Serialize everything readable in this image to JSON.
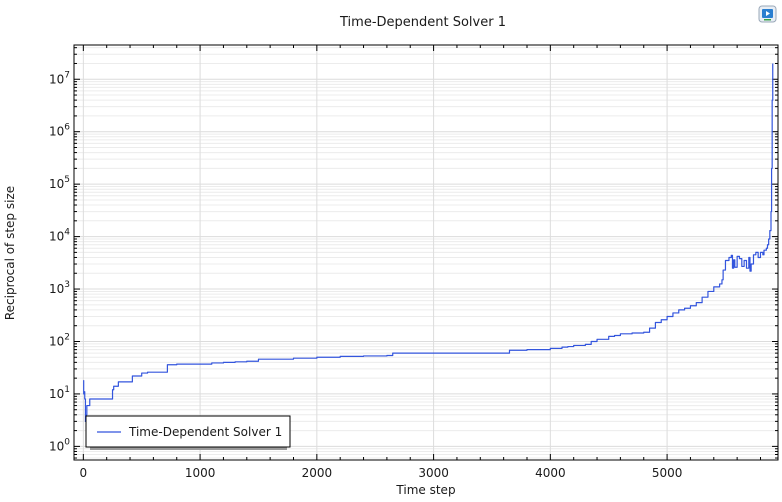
{
  "chart_data": {
    "type": "line",
    "title": "Time-Dependent Solver 1",
    "xlabel": "Time step",
    "ylabel": "Reciprocal of step size",
    "xlim": [
      -80,
      5950
    ],
    "ylim": [
      0.55,
      45000000
    ],
    "yscale": "log",
    "x_ticks": [
      0,
      1000,
      2000,
      3000,
      4000,
      5000
    ],
    "x_tick_labels": [
      "0",
      "1000",
      "2000",
      "3000",
      "4000",
      "5000"
    ],
    "y_ticks": [
      1,
      10,
      100,
      1000,
      10000,
      100000,
      1000000,
      10000000
    ],
    "y_tick_labels": [
      {
        "base": "10",
        "exp": "0"
      },
      {
        "base": "10",
        "exp": "1"
      },
      {
        "base": "10",
        "exp": "2"
      },
      {
        "base": "10",
        "exp": "3"
      },
      {
        "base": "10",
        "exp": "4"
      },
      {
        "base": "10",
        "exp": "5"
      },
      {
        "base": "10",
        "exp": "6"
      },
      {
        "base": "10",
        "exp": "7"
      }
    ],
    "grid": true,
    "legend_position": "bottom-left",
    "series_color": "#3355dd",
    "series": [
      {
        "name": "Time-Dependent Solver 1",
        "x": [
          0,
          3,
          8,
          12,
          18,
          25,
          30,
          40,
          55,
          70,
          90,
          150,
          200,
          250,
          260,
          300,
          350,
          400,
          420,
          480,
          500,
          550,
          600,
          700,
          720,
          800,
          900,
          1000,
          1100,
          1200,
          1300,
          1400,
          1500,
          1600,
          1800,
          2000,
          2200,
          2400,
          2600,
          2650,
          2800,
          3000,
          3200,
          3400,
          3600,
          3650,
          3800,
          3900,
          4000,
          4100,
          4150,
          4200,
          4300,
          4350,
          4400,
          4500,
          4550,
          4600,
          4700,
          4800,
          4850,
          4900,
          4950,
          5000,
          5050,
          5100,
          5150,
          5200,
          5250,
          5300,
          5350,
          5400,
          5450,
          5470,
          5480,
          5500,
          5530,
          5550,
          5560,
          5570,
          5580,
          5600,
          5620,
          5640,
          5660,
          5680,
          5700,
          5710,
          5720,
          5740,
          5760,
          5780,
          5800,
          5820,
          5830,
          5840,
          5850,
          5860,
          5870,
          5880,
          5890,
          5895,
          5900,
          5905
        ],
        "y": [
          18,
          10,
          11,
          8,
          3,
          4,
          6,
          6,
          8,
          8,
          8,
          8,
          8,
          12,
          14,
          17,
          17,
          17,
          22,
          22,
          25,
          26,
          26,
          26,
          36,
          37,
          37,
          37,
          39,
          40,
          41,
          42,
          46,
          46,
          48,
          50,
          52,
          53,
          54,
          60,
          60,
          60,
          60,
          60,
          60,
          68,
          70,
          70,
          74,
          78,
          80,
          84,
          88,
          100,
          110,
          125,
          130,
          140,
          145,
          150,
          180,
          230,
          260,
          300,
          350,
          400,
          430,
          480,
          550,
          700,
          900,
          1100,
          1250,
          1500,
          2300,
          3500,
          4000,
          4400,
          2500,
          3600,
          2600,
          4200,
          3800,
          2700,
          3500,
          2500,
          4000,
          2200,
          3000,
          4500,
          5000,
          4000,
          5000,
          4500,
          5500,
          5500,
          6000,
          7000,
          9000,
          13000,
          30000,
          200000,
          4000000,
          20000000
        ]
      }
    ]
  },
  "top_right_icon": "presentation-icon"
}
